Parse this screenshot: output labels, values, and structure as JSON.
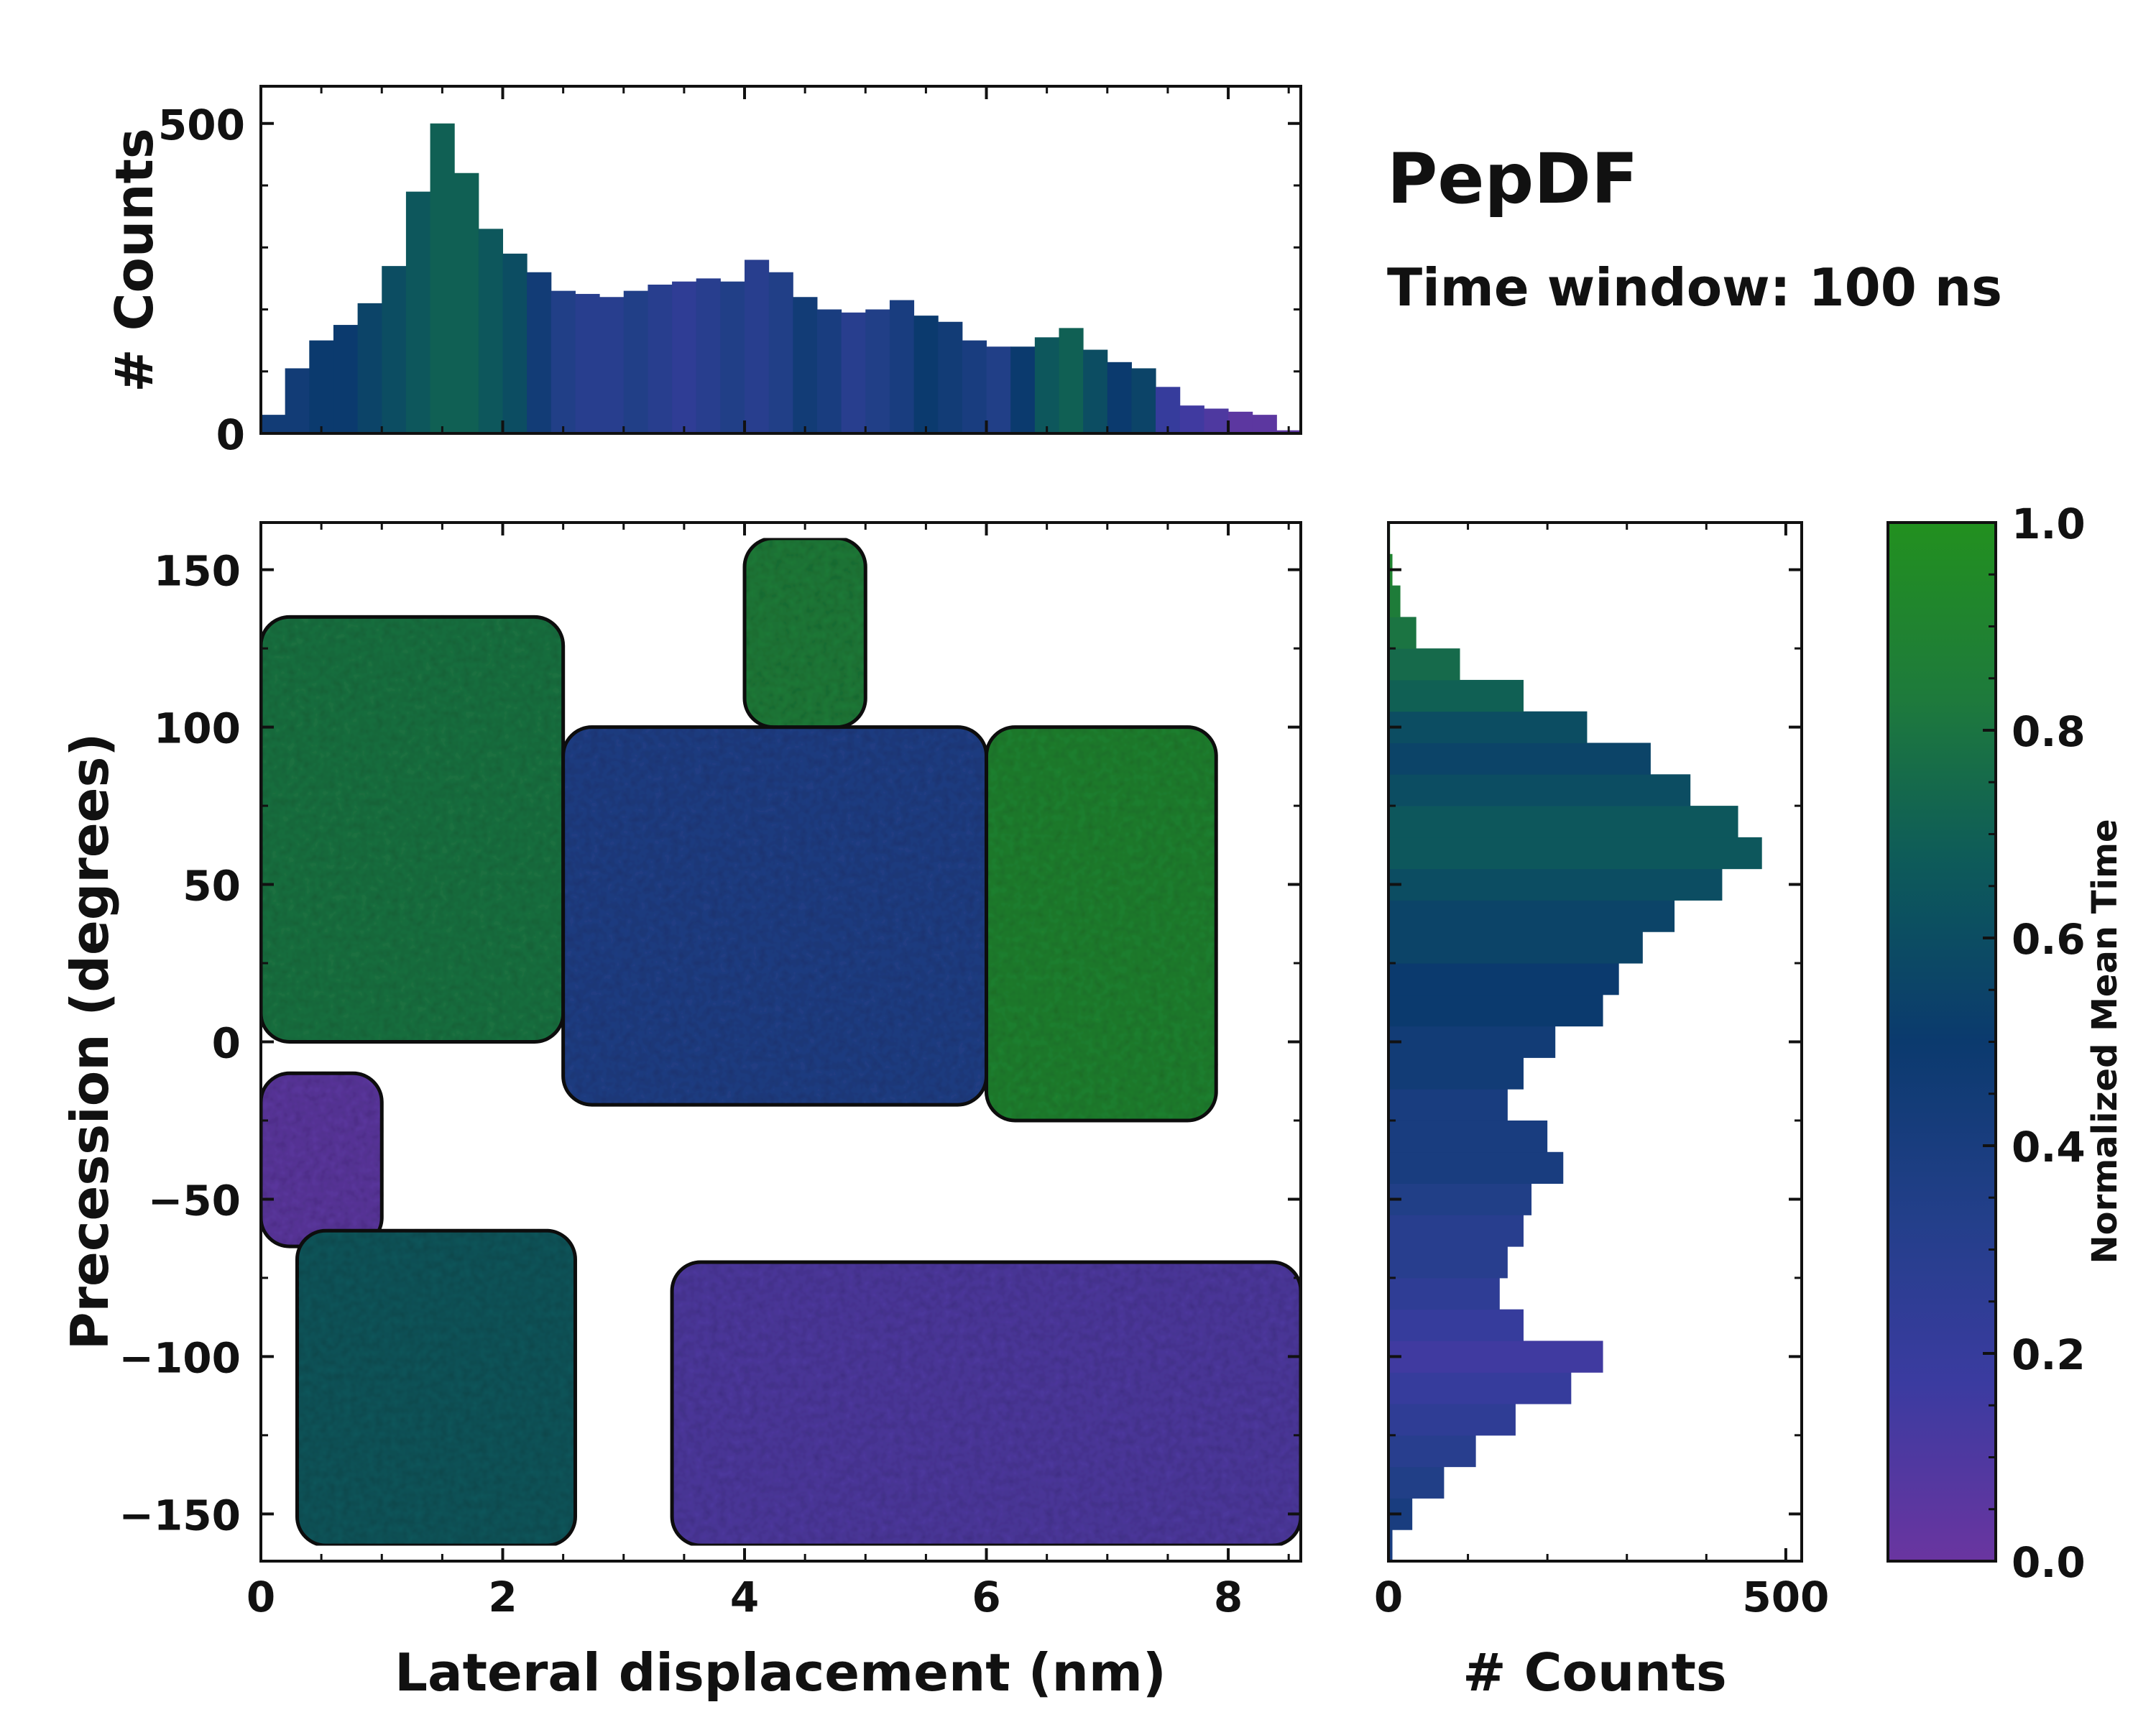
{
  "chart_data": {
    "type": "heatmap",
    "title": "PepDF",
    "subtitle": "Time window: 100 ns",
    "main": {
      "xlabel": "Lateral displacement (nm)",
      "ylabel": "Precession (degrees)",
      "xlim": [
        0,
        8.6
      ],
      "ylim": [
        -165,
        165
      ],
      "xticks": [
        "0",
        "2",
        "4",
        "6",
        "8"
      ],
      "yticks": [
        "150",
        "100",
        "50",
        "0",
        "−50",
        "−100",
        "−150"
      ],
      "xtick_values": [
        0,
        2,
        4,
        6,
        8
      ],
      "ytick_values": [
        150,
        100,
        50,
        0,
        -50,
        -100,
        -150
      ],
      "color_encoding": "Normalized mean time",
      "regions": [
        {
          "name": "upper-left cluster",
          "x_range": [
            0,
            2.5
          ],
          "y_range": [
            0,
            135
          ],
          "mean_time": 0.8
        },
        {
          "name": "upper-middle band",
          "x_range": [
            2.5,
            6.0
          ],
          "y_range": [
            -20,
            100
          ],
          "mean_time": 0.35
        },
        {
          "name": "top peak region",
          "x_range": [
            4.0,
            5.0
          ],
          "y_range": [
            100,
            160
          ],
          "mean_time": 0.85
        },
        {
          "name": "right lobe",
          "x_range": [
            6.0,
            7.9
          ],
          "y_range": [
            -25,
            100
          ],
          "mean_time": 0.9
        },
        {
          "name": "left middle",
          "x_range": [
            0,
            1.0
          ],
          "y_range": [
            -65,
            -10
          ],
          "mean_time": 0.05
        },
        {
          "name": "lower-left cluster",
          "x_range": [
            0.3,
            2.6
          ],
          "y_range": [
            -160,
            -60
          ],
          "mean_time": 0.65
        },
        {
          "name": "lower band",
          "x_range": [
            3.4,
            8.6
          ],
          "y_range": [
            -160,
            -70
          ],
          "mean_time": 0.1
        }
      ]
    },
    "top_histogram": {
      "ylabel": "# Counts",
      "ylim": [
        0,
        560
      ],
      "yticks": [
        "0",
        "500"
      ],
      "ytick_values": [
        0,
        500
      ],
      "x": [
        0.1,
        0.3,
        0.5,
        0.7,
        0.9,
        1.1,
        1.3,
        1.5,
        1.7,
        1.9,
        2.1,
        2.3,
        2.5,
        2.7,
        2.9,
        3.1,
        3.3,
        3.5,
        3.7,
        3.9,
        4.1,
        4.3,
        4.5,
        4.7,
        4.9,
        5.1,
        5.3,
        5.5,
        5.7,
        5.9,
        6.1,
        6.3,
        6.5,
        6.7,
        6.9,
        7.1,
        7.3,
        7.5,
        7.7,
        7.9,
        8.1,
        8.3,
        8.5
      ],
      "values": [
        30,
        105,
        150,
        175,
        210,
        270,
        390,
        500,
        420,
        330,
        290,
        260,
        230,
        225,
        220,
        230,
        240,
        245,
        250,
        245,
        280,
        260,
        220,
        200,
        195,
        200,
        215,
        190,
        180,
        150,
        140,
        140,
        155,
        170,
        135,
        115,
        105,
        75,
        45,
        40,
        35,
        30,
        5
      ]
    },
    "right_histogram": {
      "xlabel": "# Counts",
      "xlim": [
        0,
        520
      ],
      "xticks": [
        "0",
        "500"
      ],
      "xtick_values": [
        0,
        500
      ],
      "y": [
        -160,
        -150,
        -140,
        -130,
        -120,
        -110,
        -100,
        -90,
        -80,
        -70,
        -60,
        -50,
        -40,
        -30,
        -20,
        -10,
        0,
        10,
        20,
        30,
        40,
        50,
        60,
        70,
        80,
        90,
        100,
        110,
        120,
        130,
        140,
        150,
        160
      ],
      "values": [
        5,
        30,
        70,
        110,
        160,
        230,
        270,
        170,
        140,
        150,
        170,
        180,
        220,
        200,
        150,
        170,
        210,
        270,
        290,
        320,
        360,
        420,
        470,
        440,
        380,
        330,
        250,
        170,
        90,
        35,
        15,
        5,
        2
      ]
    },
    "colorbar": {
      "label": "Normalized Mean Time",
      "range": [
        0.0,
        1.0
      ],
      "ticks": [
        "0.0",
        "0.2",
        "0.4",
        "0.6",
        "0.8",
        "1.0"
      ],
      "tick_values": [
        0.0,
        0.2,
        0.4,
        0.6,
        0.8,
        1.0
      ],
      "color_stops": [
        "#6a35a0",
        "#3b3ba0",
        "#233f8a",
        "#0b3a6e",
        "#0d5a5a",
        "#1e7a3c",
        "#22901f"
      ]
    }
  }
}
